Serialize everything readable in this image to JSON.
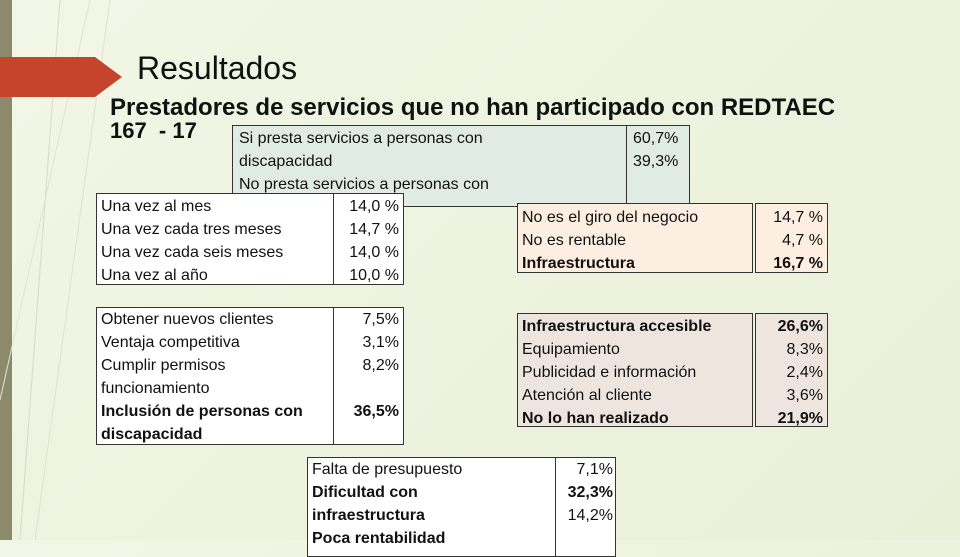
{
  "header": {
    "title": "Resultados",
    "subtitle": "Prestadores de servicios que no han participado con REDTAEC",
    "counts": "167  - 17"
  },
  "boxes": [
    {
      "lines": [
        "Si presta servicios  a personas con",
        "discapacidad",
        "No presta servicios a personas con"
      ],
      "values": [
        "60,7%",
        "39,3%"
      ]
    },
    {
      "lines": [
        "Una vez al mes",
        "Una vez cada tres meses",
        "Una vez cada seis meses",
        "Una vez al año"
      ],
      "values": [
        "14,0 %",
        "14,7 %",
        "14,0 %",
        "10,0 %"
      ]
    },
    {
      "lines": [
        "No es el giro del negocio",
        "No es rentable",
        "Infraestructura"
      ],
      "values": [
        "14,7 %",
        "4,7 %",
        "16,7 %"
      ]
    },
    {
      "lines": [
        "Obtener nuevos clientes",
        "Ventaja competitiva",
        "Cumplir permisos",
        "funcionamiento",
        "Inclusión de personas con",
        "discapacidad"
      ],
      "values": [
        "7,5%",
        "3,1%",
        "8,2%",
        "36,5%"
      ]
    },
    {
      "lines": [
        "Infraestructura accesible",
        "Equipamiento",
        "Publicidad e información",
        "Atención al cliente",
        "No lo han realizado"
      ],
      "values": [
        "26,6%",
        "8,3%",
        "2,4%",
        "3,6%",
        "21,9%"
      ]
    },
    {
      "lines": [
        "Falta de presupuesto",
        "Dificultad con",
        "infraestructura",
        "Poca rentabilidad"
      ],
      "values": [
        "7,1%",
        "32,3%",
        "14,2%"
      ]
    }
  ]
}
